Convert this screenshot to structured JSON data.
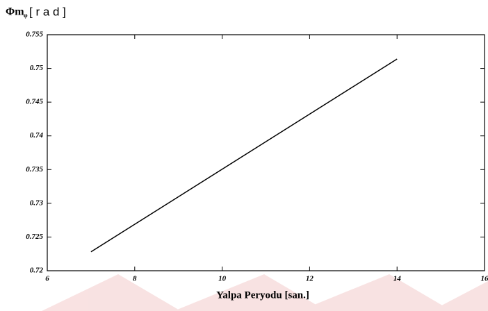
{
  "chart_data": {
    "type": "line",
    "ylabel": "Φm",
    "ylabel_subscript": "φ",
    "ylabel_unit": "[ r a d ]",
    "xlabel": "Yalpa Peryodu [san.]",
    "x": [
      7,
      14
    ],
    "series": [
      {
        "color": "#000000",
        "values": [
          0.7228,
          0.7514
        ]
      }
    ],
    "xlim": [
      6,
      16
    ],
    "xticks": [
      6,
      8,
      10,
      12,
      14,
      16
    ],
    "ylim": [
      0.72,
      0.755
    ],
    "yticks": [
      0.72,
      0.725,
      0.73,
      0.735,
      0.74,
      0.745,
      0.75,
      0.755
    ],
    "grid": false
  }
}
